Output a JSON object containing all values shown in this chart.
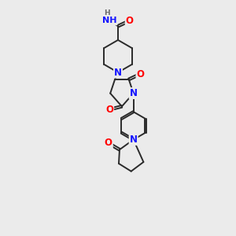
{
  "bg_color": "#ebebeb",
  "bond_color": "#2a2a2a",
  "N_color": "#1414ff",
  "O_color": "#ff0000",
  "H_color": "#6a6a6a",
  "bond_width": 1.4,
  "font_size_atom": 8.5,
  "fig_w": 3.0,
  "fig_h": 3.0,
  "dpi": 100,
  "xlim": [
    0,
    10
  ],
  "ylim": [
    0,
    15
  ]
}
